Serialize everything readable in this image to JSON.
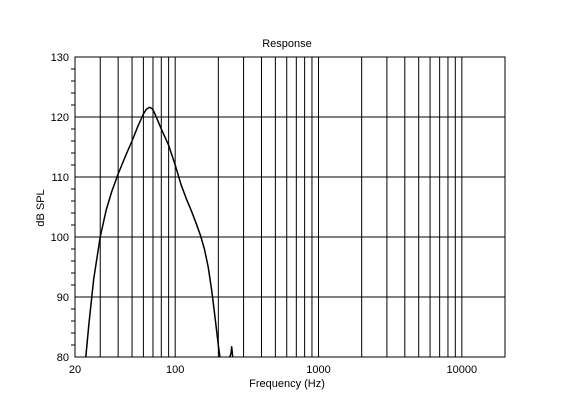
{
  "chart_data": {
    "type": "line",
    "title": "Response",
    "xlabel": "Frequency (Hz)",
    "ylabel": "dB SPL",
    "xscale": "log",
    "xlim": [
      20,
      20000
    ],
    "ylim": [
      80,
      130
    ],
    "x_tick_labels": [
      "20",
      "100",
      "1000",
      "10000"
    ],
    "x_tick_values": [
      20,
      100,
      1000,
      10000
    ],
    "y_tick_labels": [
      "80",
      "90",
      "100",
      "110",
      "120",
      "130"
    ],
    "y_tick_values": [
      80,
      90,
      100,
      110,
      120,
      130
    ],
    "grid": true,
    "colors": {
      "line": "#000000",
      "grid": "#000000",
      "background": "#ffffff"
    },
    "series": [
      {
        "x": [
          23.8,
          25,
          27,
          30,
          33,
          36,
          40,
          45,
          50,
          55,
          60,
          63,
          66,
          68,
          70,
          72,
          75,
          80,
          90,
          100,
          110,
          120,
          130,
          140,
          150,
          160,
          170,
          180,
          190,
          200,
          205
        ],
        "y": [
          80,
          85.5,
          93,
          100,
          104.5,
          107.5,
          110.5,
          113.5,
          116,
          118.5,
          120.5,
          121.3,
          121.6,
          121.5,
          121.2,
          120.6,
          119.6,
          118,
          115.3,
          112,
          108.7,
          106.3,
          104.3,
          102.3,
          100.3,
          98,
          95,
          91,
          86.5,
          82,
          80
        ]
      },
      {
        "x": [
          240,
          245,
          248,
          252
        ],
        "y": [
          80,
          80.6,
          81.7,
          80
        ]
      }
    ]
  }
}
